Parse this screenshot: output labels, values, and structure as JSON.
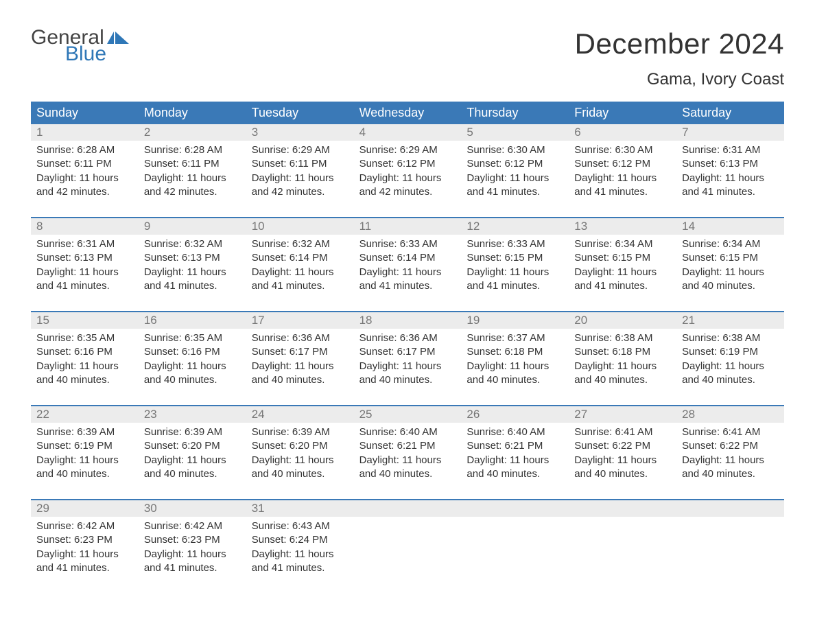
{
  "brand": {
    "text_general": "General",
    "text_blue": "Blue",
    "flag_color": "#2f77b7",
    "text_color_general": "#555555",
    "text_color_blue": "#2f77b7"
  },
  "title": {
    "month": "December 2024",
    "location": "Gama, Ivory Coast",
    "month_fontsize": 42,
    "location_fontsize": 24,
    "color": "#333333"
  },
  "calendar": {
    "header_bg": "#3a79b7",
    "header_text_color": "#ffffff",
    "daynum_bg": "#ececec",
    "daynum_color": "#777777",
    "border_color": "#3a79b7",
    "body_text_color": "#333333",
    "background_color": "#ffffff",
    "font_family": "Arial, Helvetica, sans-serif",
    "body_fontsize": 15,
    "header_fontsize": 18,
    "columns": [
      "Sunday",
      "Monday",
      "Tuesday",
      "Wednesday",
      "Thursday",
      "Friday",
      "Saturday"
    ],
    "weeks": [
      {
        "days": [
          {
            "n": "1",
            "sunrise": "6:28 AM",
            "sunset": "6:11 PM",
            "daylight": "11 hours and 42 minutes."
          },
          {
            "n": "2",
            "sunrise": "6:28 AM",
            "sunset": "6:11 PM",
            "daylight": "11 hours and 42 minutes."
          },
          {
            "n": "3",
            "sunrise": "6:29 AM",
            "sunset": "6:11 PM",
            "daylight": "11 hours and 42 minutes."
          },
          {
            "n": "4",
            "sunrise": "6:29 AM",
            "sunset": "6:12 PM",
            "daylight": "11 hours and 42 minutes."
          },
          {
            "n": "5",
            "sunrise": "6:30 AM",
            "sunset": "6:12 PM",
            "daylight": "11 hours and 41 minutes."
          },
          {
            "n": "6",
            "sunrise": "6:30 AM",
            "sunset": "6:12 PM",
            "daylight": "11 hours and 41 minutes."
          },
          {
            "n": "7",
            "sunrise": "6:31 AM",
            "sunset": "6:13 PM",
            "daylight": "11 hours and 41 minutes."
          }
        ]
      },
      {
        "days": [
          {
            "n": "8",
            "sunrise": "6:31 AM",
            "sunset": "6:13 PM",
            "daylight": "11 hours and 41 minutes."
          },
          {
            "n": "9",
            "sunrise": "6:32 AM",
            "sunset": "6:13 PM",
            "daylight": "11 hours and 41 minutes."
          },
          {
            "n": "10",
            "sunrise": "6:32 AM",
            "sunset": "6:14 PM",
            "daylight": "11 hours and 41 minutes."
          },
          {
            "n": "11",
            "sunrise": "6:33 AM",
            "sunset": "6:14 PM",
            "daylight": "11 hours and 41 minutes."
          },
          {
            "n": "12",
            "sunrise": "6:33 AM",
            "sunset": "6:15 PM",
            "daylight": "11 hours and 41 minutes."
          },
          {
            "n": "13",
            "sunrise": "6:34 AM",
            "sunset": "6:15 PM",
            "daylight": "11 hours and 41 minutes."
          },
          {
            "n": "14",
            "sunrise": "6:34 AM",
            "sunset": "6:15 PM",
            "daylight": "11 hours and 40 minutes."
          }
        ]
      },
      {
        "days": [
          {
            "n": "15",
            "sunrise": "6:35 AM",
            "sunset": "6:16 PM",
            "daylight": "11 hours and 40 minutes."
          },
          {
            "n": "16",
            "sunrise": "6:35 AM",
            "sunset": "6:16 PM",
            "daylight": "11 hours and 40 minutes."
          },
          {
            "n": "17",
            "sunrise": "6:36 AM",
            "sunset": "6:17 PM",
            "daylight": "11 hours and 40 minutes."
          },
          {
            "n": "18",
            "sunrise": "6:36 AM",
            "sunset": "6:17 PM",
            "daylight": "11 hours and 40 minutes."
          },
          {
            "n": "19",
            "sunrise": "6:37 AM",
            "sunset": "6:18 PM",
            "daylight": "11 hours and 40 minutes."
          },
          {
            "n": "20",
            "sunrise": "6:38 AM",
            "sunset": "6:18 PM",
            "daylight": "11 hours and 40 minutes."
          },
          {
            "n": "21",
            "sunrise": "6:38 AM",
            "sunset": "6:19 PM",
            "daylight": "11 hours and 40 minutes."
          }
        ]
      },
      {
        "days": [
          {
            "n": "22",
            "sunrise": "6:39 AM",
            "sunset": "6:19 PM",
            "daylight": "11 hours and 40 minutes."
          },
          {
            "n": "23",
            "sunrise": "6:39 AM",
            "sunset": "6:20 PM",
            "daylight": "11 hours and 40 minutes."
          },
          {
            "n": "24",
            "sunrise": "6:39 AM",
            "sunset": "6:20 PM",
            "daylight": "11 hours and 40 minutes."
          },
          {
            "n": "25",
            "sunrise": "6:40 AM",
            "sunset": "6:21 PM",
            "daylight": "11 hours and 40 minutes."
          },
          {
            "n": "26",
            "sunrise": "6:40 AM",
            "sunset": "6:21 PM",
            "daylight": "11 hours and 40 minutes."
          },
          {
            "n": "27",
            "sunrise": "6:41 AM",
            "sunset": "6:22 PM",
            "daylight": "11 hours and 40 minutes."
          },
          {
            "n": "28",
            "sunrise": "6:41 AM",
            "sunset": "6:22 PM",
            "daylight": "11 hours and 40 minutes."
          }
        ]
      },
      {
        "days": [
          {
            "n": "29",
            "sunrise": "6:42 AM",
            "sunset": "6:23 PM",
            "daylight": "11 hours and 41 minutes."
          },
          {
            "n": "30",
            "sunrise": "6:42 AM",
            "sunset": "6:23 PM",
            "daylight": "11 hours and 41 minutes."
          },
          {
            "n": "31",
            "sunrise": "6:43 AM",
            "sunset": "6:24 PM",
            "daylight": "11 hours and 41 minutes."
          },
          {
            "n": "",
            "empty": true
          },
          {
            "n": "",
            "empty": true
          },
          {
            "n": "",
            "empty": true
          },
          {
            "n": "",
            "empty": true
          }
        ]
      }
    ],
    "labels": {
      "sunrise_prefix": "Sunrise: ",
      "sunset_prefix": "Sunset: ",
      "daylight_prefix": "Daylight: "
    }
  }
}
